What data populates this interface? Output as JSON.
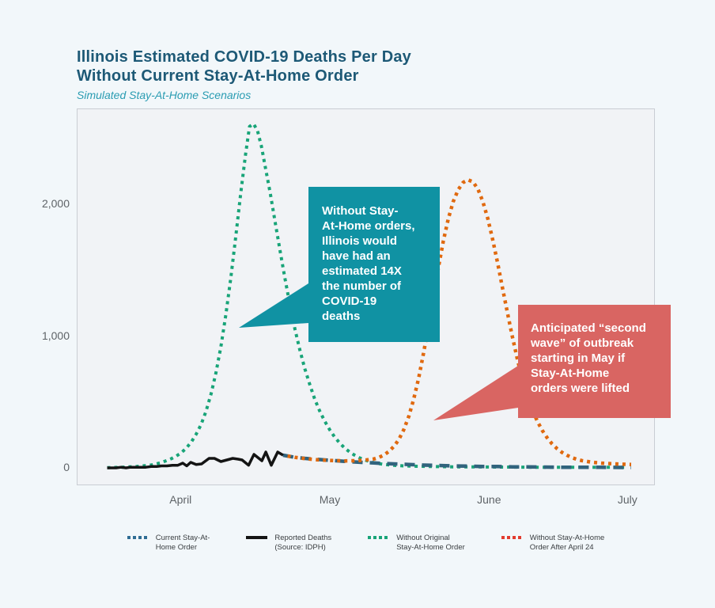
{
  "header": {
    "title_line1": "Illinois Estimated COVID-19 Deaths Per Day",
    "title_line2": "Without Current Stay-At-Home Order",
    "subtitle": "Simulated Stay-At-Home Scenarios"
  },
  "colors": {
    "page_background": "#f2f7fa",
    "plot_background": "#f1f3f6",
    "title_text": "#1d5976",
    "subtitle_text": "#2a9cb2",
    "teal_callout": "#1092a3",
    "red_callout": "#d96562",
    "reported_deaths_line": "#141414",
    "current_order_line": "#31637d",
    "without_original_line": "#18a478",
    "without_after_april24_line": "#e0690f",
    "legend_blue": "#2f6d94",
    "legend_red": "#e23b2e"
  },
  "chart_data": {
    "type": "line",
    "title": "Illinois Estimated COVID-19 Deaths Per Day Without Current Stay-At-Home Order",
    "subtitle": "Simulated Stay-At-Home Scenarios",
    "grid": false,
    "legend_position": "bottom",
    "x_axis": {
      "unit": "date (mid-March 2020 through early July 2020; day 0 = left edge of plot)",
      "ticks": [
        {
          "label": "April",
          "day": 21
        },
        {
          "label": "May",
          "day": 51.2
        },
        {
          "label": "June",
          "day": 83.4
        },
        {
          "label": "July",
          "day": 111.4
        }
      ]
    },
    "y_axis": {
      "unit": "estimated COVID-19 deaths per day",
      "ylim": [
        0,
        2720
      ],
      "ticks": [
        {
          "label": "0",
          "value": 0
        },
        {
          "label": "1,000",
          "value": 1000
        },
        {
          "label": "2,000",
          "value": 2000
        }
      ]
    },
    "series": [
      {
        "id": "without-original-stay-at-home-order",
        "name": "Without Original Stay-At-Home Order",
        "color": "#18a478",
        "dash": "4 5",
        "width": 4,
        "points": [
          [
            6,
            2
          ],
          [
            9,
            5
          ],
          [
            12,
            10
          ],
          [
            15,
            22
          ],
          [
            17,
            40
          ],
          [
            19,
            70
          ],
          [
            20,
            90
          ],
          [
            21,
            115
          ],
          [
            22,
            150
          ],
          [
            23,
            195
          ],
          [
            24,
            255
          ],
          [
            25,
            330
          ],
          [
            26,
            430
          ],
          [
            27,
            560
          ],
          [
            28,
            720
          ],
          [
            29,
            920
          ],
          [
            30,
            1160
          ],
          [
            31,
            1440
          ],
          [
            32,
            1750
          ],
          [
            33,
            2080
          ],
          [
            34,
            2380
          ],
          [
            34.8,
            2590
          ],
          [
            35.6,
            2610
          ],
          [
            36.4,
            2560
          ],
          [
            37.2,
            2440
          ],
          [
            38,
            2280
          ],
          [
            39,
            2080
          ],
          [
            40,
            1860
          ],
          [
            41,
            1640
          ],
          [
            42,
            1430
          ],
          [
            43,
            1230
          ],
          [
            44,
            1050
          ],
          [
            45,
            890
          ],
          [
            46,
            750
          ],
          [
            47,
            630
          ],
          [
            48,
            520
          ],
          [
            49,
            430
          ],
          [
            50,
            355
          ],
          [
            51,
            290
          ],
          [
            52,
            235
          ],
          [
            53,
            190
          ],
          [
            54,
            152
          ],
          [
            55,
            122
          ],
          [
            56,
            97
          ],
          [
            57,
            77
          ],
          [
            58,
            61
          ],
          [
            59,
            49
          ],
          [
            60,
            39
          ],
          [
            62,
            26
          ],
          [
            64,
            19
          ],
          [
            66,
            15
          ],
          [
            69,
            12
          ],
          [
            72,
            10
          ],
          [
            76,
            8
          ],
          [
            81,
            7
          ],
          [
            86,
            6
          ],
          [
            92,
            5
          ],
          [
            98,
            5
          ],
          [
            104,
            4
          ],
          [
            111,
            4
          ]
        ]
      },
      {
        "id": "current-stay-at-home-order",
        "name": "Current Stay-At-Home Order",
        "color": "#31637d",
        "dash": "13 9",
        "width": 4.5,
        "points": [
          [
            41.6,
            96
          ],
          [
            44,
            80
          ],
          [
            46,
            72
          ],
          [
            48,
            66
          ],
          [
            50,
            60
          ],
          [
            52,
            55
          ],
          [
            54,
            50
          ],
          [
            56,
            45
          ],
          [
            58,
            41
          ],
          [
            60,
            37
          ],
          [
            62,
            33
          ],
          [
            64,
            30
          ],
          [
            66,
            27
          ],
          [
            68,
            24
          ],
          [
            70,
            21
          ],
          [
            73,
            18
          ],
          [
            76,
            15
          ],
          [
            79,
            13
          ],
          [
            82,
            11
          ],
          [
            85,
            10
          ],
          [
            88,
            8
          ],
          [
            91,
            7
          ],
          [
            94,
            6
          ],
          [
            98,
            5
          ],
          [
            102,
            4
          ],
          [
            106,
            4
          ],
          [
            112,
            3
          ]
        ]
      },
      {
        "id": "without-stay-at-home-order-after-april-24",
        "name": "Without Stay-At-Home Order After April 24",
        "color": "#e0690f",
        "dash": "4 5",
        "width": 4.5,
        "points": [
          [
            42.5,
            90
          ],
          [
            44,
            80
          ],
          [
            46,
            70
          ],
          [
            48,
            63
          ],
          [
            50,
            58
          ],
          [
            52,
            55
          ],
          [
            54,
            53
          ],
          [
            56,
            54
          ],
          [
            58,
            58
          ],
          [
            60,
            68
          ],
          [
            61,
            80
          ],
          [
            62,
            98
          ],
          [
            63,
            125
          ],
          [
            64,
            163
          ],
          [
            65,
            215
          ],
          [
            66,
            290
          ],
          [
            67,
            390
          ],
          [
            68,
            520
          ],
          [
            69,
            680
          ],
          [
            70,
            870
          ],
          [
            71,
            1080
          ],
          [
            72,
            1300
          ],
          [
            73,
            1520
          ],
          [
            74,
            1720
          ],
          [
            75,
            1890
          ],
          [
            76,
            2020
          ],
          [
            77,
            2110
          ],
          [
            78,
            2165
          ],
          [
            79,
            2185
          ],
          [
            80,
            2170
          ],
          [
            81,
            2115
          ],
          [
            82,
            2020
          ],
          [
            83,
            1890
          ],
          [
            84,
            1730
          ],
          [
            85,
            1550
          ],
          [
            86,
            1360
          ],
          [
            87,
            1170
          ],
          [
            88,
            990
          ],
          [
            89,
            820
          ],
          [
            90,
            670
          ],
          [
            91,
            545
          ],
          [
            92,
            440
          ],
          [
            93,
            355
          ],
          [
            94,
            285
          ],
          [
            95,
            228
          ],
          [
            96,
            182
          ],
          [
            97,
            146
          ],
          [
            98,
            118
          ],
          [
            99,
            96
          ],
          [
            100,
            78
          ],
          [
            101,
            65
          ],
          [
            102,
            55
          ],
          [
            104,
            43
          ],
          [
            106,
            36
          ],
          [
            108,
            31
          ],
          [
            110,
            28
          ],
          [
            112,
            26
          ]
        ]
      },
      {
        "id": "reported-deaths",
        "name": "Reported Deaths (Source: IDPH)",
        "color": "#141414",
        "dash": "",
        "width": 3.5,
        "points": [
          [
            6,
            0
          ],
          [
            6.9,
            0
          ],
          [
            7.8,
            0
          ],
          [
            8.8,
            5
          ],
          [
            9.8,
            0
          ],
          [
            10.7,
            5
          ],
          [
            11.7,
            5
          ],
          [
            12.6,
            5
          ],
          [
            13.8,
            5
          ],
          [
            14.9,
            10
          ],
          [
            16,
            10
          ],
          [
            17,
            15
          ],
          [
            18.1,
            15
          ],
          [
            19.2,
            20
          ],
          [
            20.3,
            20
          ],
          [
            21.3,
            36
          ],
          [
            22.1,
            15
          ],
          [
            22.9,
            42
          ],
          [
            24,
            25
          ],
          [
            25.1,
            30
          ],
          [
            26.6,
            72
          ],
          [
            27.7,
            72
          ],
          [
            29,
            48
          ],
          [
            30.2,
            60
          ],
          [
            31.4,
            72
          ],
          [
            32.5,
            66
          ],
          [
            33.3,
            60
          ],
          [
            34.6,
            20
          ],
          [
            35.7,
            102
          ],
          [
            37.3,
            54
          ],
          [
            38.1,
            120
          ],
          [
            39.2,
            20
          ],
          [
            40.5,
            120
          ],
          [
            41.6,
            96
          ]
        ]
      }
    ],
    "legend": [
      {
        "id": "current-stay-at-home-order",
        "swatch": "dotted",
        "color": "#2f6d94",
        "label_line1": "Current Stay-At-",
        "label_line2": "Home Order"
      },
      {
        "id": "reported-deaths",
        "swatch": "solid",
        "color": "#141414",
        "label_line1": "Reported Deaths",
        "label_line2": "(Source: IDPH)"
      },
      {
        "id": "without-original-stay-at-home-order",
        "swatch": "dotted",
        "color": "#18a478",
        "label_line1": "Without Original",
        "label_line2": "Stay-At-Home Order"
      },
      {
        "id": "without-stay-at-home-order-after-april-24",
        "swatch": "dotted",
        "color": "#e23b2e",
        "label_line1": "Without Stay-At-Home",
        "label_line2": "Order After April 24"
      }
    ],
    "annotations": [
      {
        "id": "no-orders-callout",
        "text": "Without Stay-\nAt-Home orders,\nIllinois would\nhave had an\nestimated 14X\nthe number of\nCOVID-19\ndeaths",
        "bg": "#1092a3"
      },
      {
        "id": "second-wave-callout",
        "text": "Anticipated “second\nwave” of outbreak\nstarting in May if\nStay-At-Home\norders were lifted",
        "bg": "#d96562"
      }
    ]
  }
}
